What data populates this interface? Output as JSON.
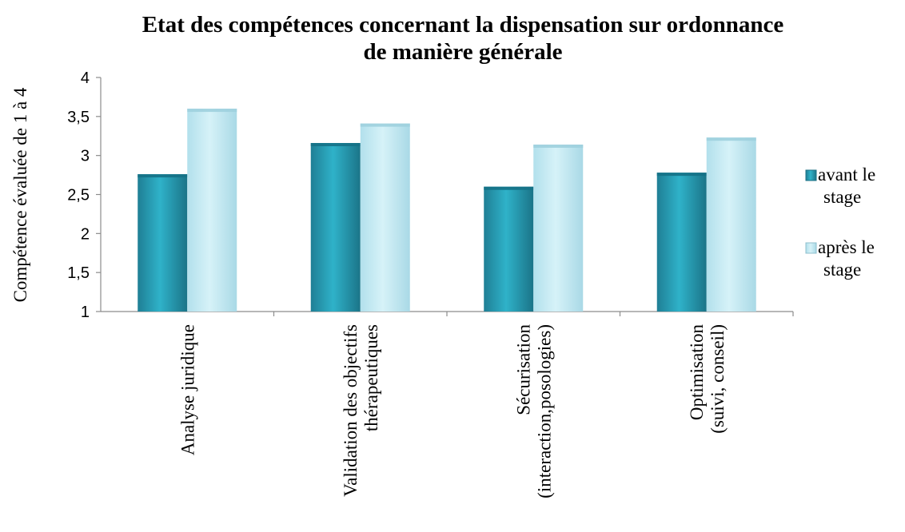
{
  "chart_data": {
    "type": "bar",
    "title_lines": [
      "Etat des compétences concernant la dispensation sur ordonnance",
      "de manière générale"
    ],
    "ylabel": "Compétence évaluée de 1 à 4",
    "xlabel": "",
    "ylim": [
      1,
      4
    ],
    "yticks": [
      "1",
      "1,5",
      "2",
      "2,5",
      "3",
      "3,5",
      "4"
    ],
    "categories": [
      [
        "Analyse juridique"
      ],
      [
        "Validation des objectifs",
        "thérapeutiques"
      ],
      [
        "Sécurisation",
        "(interaction,posologies)"
      ],
      [
        "Optimisation",
        "(suivi, conseil)"
      ]
    ],
    "series": [
      {
        "name_lines": [
          "avant le",
          "stage"
        ],
        "values": [
          2.76,
          3.16,
          2.6,
          2.78
        ],
        "color": "#2aa6bd"
      },
      {
        "name_lines": [
          "après le",
          "stage"
        ],
        "values": [
          3.6,
          3.41,
          3.14,
          3.23
        ],
        "color": "#bfe9f3"
      }
    ],
    "grid": false,
    "legend_position": "right"
  }
}
